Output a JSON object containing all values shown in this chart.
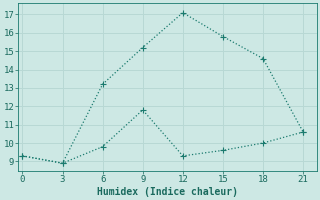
{
  "xlabel": "Humidex (Indice chaleur)",
  "background_color": "#cde8e4",
  "grid_color": "#b8d8d4",
  "line_color": "#1a7a6e",
  "x_ticks": [
    0,
    3,
    6,
    9,
    12,
    15,
    18,
    21
  ],
  "x_tick_labels": [
    "0",
    "3",
    "6",
    "9",
    "12",
    "15",
    "18",
    "21"
  ],
  "ylim": [
    8.5,
    17.6
  ],
  "xlim": [
    -0.3,
    22.0
  ],
  "line1_x": [
    0,
    3,
    6,
    9,
    12,
    15,
    18,
    21
  ],
  "line1_y": [
    9.3,
    8.9,
    13.2,
    15.2,
    17.1,
    15.8,
    14.6,
    10.6
  ],
  "line2_x": [
    0,
    3,
    6,
    9,
    12,
    15,
    18,
    21
  ],
  "line2_y": [
    9.3,
    8.9,
    9.8,
    11.8,
    9.3,
    9.6,
    10.0,
    10.6
  ],
  "yticks": [
    9,
    10,
    11,
    12,
    13,
    14,
    15,
    16,
    17
  ],
  "font_color": "#1a6a5e",
  "markersize": 3,
  "linewidth": 0.9
}
